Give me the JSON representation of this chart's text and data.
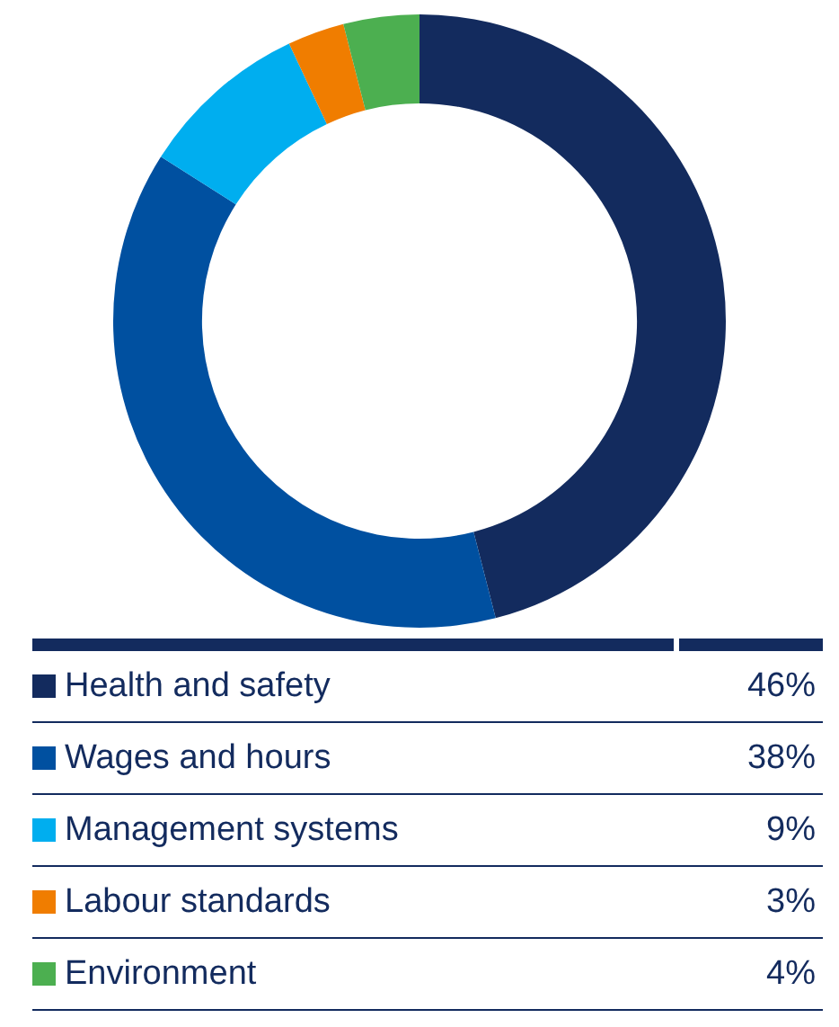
{
  "chart_data": {
    "type": "donut",
    "categories": [
      "Health and safety",
      "Wages and hours",
      "Management systems",
      "Labour standards",
      "Environment"
    ],
    "values": [
      46,
      38,
      9,
      3,
      4
    ],
    "value_labels": [
      "46%",
      "38%",
      "9%",
      "3%",
      "4%"
    ],
    "colors": [
      "#132b5e",
      "#0050a0",
      "#00aeef",
      "#f07d00",
      "#4caf50"
    ],
    "legend": "bottom"
  }
}
